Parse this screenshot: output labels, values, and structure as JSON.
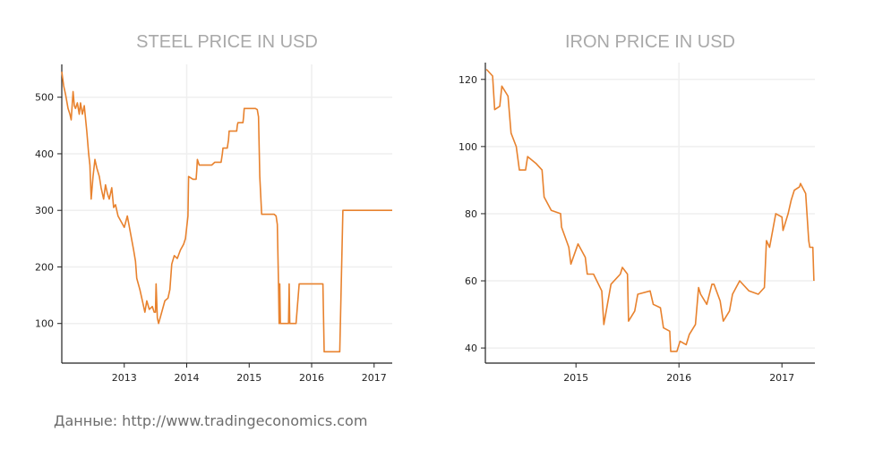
{
  "source_text": "Данные: http://www.tradingeconomics.com",
  "colors": {
    "line": "#e8822e",
    "axis": "#222222",
    "grid": "#efefef",
    "title": "#a9a9a9"
  },
  "chart_data": [
    {
      "type": "line",
      "title": "STEEL PRICE IN USD",
      "xlabel": "",
      "ylabel": "",
      "xlim": [
        2012.0,
        2017.29
      ],
      "ylim": [
        30,
        558
      ],
      "xticks": [
        2013,
        2014,
        2015,
        2016,
        2017
      ],
      "xtick_labels": [
        "2013",
        "2014",
        "2015",
        "2016",
        "2017"
      ],
      "yticks": [
        100,
        200,
        300,
        400,
        500
      ],
      "ytick_labels": [
        "100",
        "200",
        "300",
        "400",
        "500"
      ],
      "grid": true,
      "series": [
        {
          "name": "Steel",
          "x": [
            2012.0,
            2012.03,
            2012.06,
            2012.1,
            2012.13,
            2012.15,
            2012.18,
            2012.2,
            2012.22,
            2012.25,
            2012.28,
            2012.3,
            2012.33,
            2012.36,
            2012.4,
            2012.43,
            2012.45,
            2012.47,
            2012.5,
            2012.53,
            2012.56,
            2012.6,
            2012.63,
            2012.67,
            2012.7,
            2012.73,
            2012.76,
            2012.8,
            2012.83,
            2012.86,
            2012.9,
            2012.95,
            2013.0,
            2013.05,
            2013.1,
            2013.15,
            2013.18,
            2013.2,
            2013.25,
            2013.3,
            2013.33,
            2013.36,
            2013.4,
            2013.45,
            2013.48,
            2013.5,
            2013.51,
            2013.53,
            2013.55,
            2013.6,
            2013.65,
            2013.7,
            2013.73,
            2013.76,
            2013.8,
            2013.85,
            2013.9,
            2013.95,
            2013.98,
            2014.02,
            2014.03,
            2014.1,
            2014.15,
            2014.16,
            2014.17,
            2014.2,
            2014.4,
            2014.45,
            2014.55,
            2014.57,
            2014.58,
            2014.65,
            2014.67,
            2014.68,
            2014.8,
            2014.81,
            2014.82,
            2014.9,
            2014.91,
            2014.92,
            2015.1,
            2015.13,
            2015.15,
            2015.17,
            2015.2,
            2015.4,
            2015.43,
            2015.45,
            2015.47,
            2015.48,
            2015.49,
            2015.5,
            2015.62,
            2015.63,
            2015.64,
            2015.65,
            2015.72,
            2015.75,
            2015.8,
            2016.18,
            2016.2,
            2016.45,
            2016.5,
            2017.29
          ],
          "y": [
            545,
            520,
            505,
            480,
            470,
            460,
            510,
            485,
            480,
            490,
            470,
            490,
            470,
            485,
            440,
            400,
            380,
            320,
            360,
            390,
            375,
            360,
            340,
            320,
            345,
            330,
            320,
            340,
            305,
            310,
            290,
            280,
            270,
            290,
            260,
            230,
            210,
            180,
            160,
            135,
            120,
            140,
            125,
            130,
            120,
            120,
            170,
            110,
            100,
            120,
            140,
            145,
            160,
            205,
            220,
            215,
            230,
            240,
            250,
            290,
            360,
            355,
            355,
            370,
            390,
            380,
            380,
            385,
            385,
            400,
            410,
            410,
            425,
            440,
            440,
            450,
            455,
            455,
            465,
            480,
            480,
            478,
            465,
            360,
            293,
            293,
            290,
            275,
            170,
            100,
            170,
            100,
            100,
            100,
            170,
            100,
            100,
            100,
            170,
            170,
            50,
            50,
            300,
            300
          ]
        }
      ]
    },
    {
      "type": "line",
      "title": "IRON PRICE IN USD",
      "xlabel": "",
      "ylabel": "",
      "xlim": [
        2014.12,
        2017.32
      ],
      "ylim": [
        35.5,
        125
      ],
      "xticks": [
        2015,
        2016,
        2017
      ],
      "xtick_labels": [
        "2015",
        "2016",
        "2017"
      ],
      "yticks": [
        40,
        60,
        80,
        100,
        120
      ],
      "ytick_labels": [
        "40",
        "60",
        "80",
        "100",
        "120"
      ],
      "grid": true,
      "series": [
        {
          "name": "Iron",
          "x": [
            2014.13,
            2014.19,
            2014.21,
            2014.26,
            2014.28,
            2014.34,
            2014.37,
            2014.42,
            2014.45,
            2014.51,
            2014.53,
            2014.61,
            2014.67,
            2014.69,
            2014.76,
            2014.85,
            2014.86,
            2014.93,
            2014.95,
            2015.02,
            2015.09,
            2015.11,
            2015.17,
            2015.25,
            2015.27,
            2015.34,
            2015.43,
            2015.45,
            2015.5,
            2015.51,
            2015.57,
            2015.6,
            2015.72,
            2015.75,
            2015.82,
            2015.85,
            2015.91,
            2015.92,
            2015.98,
            2016.01,
            2016.07,
            2016.1,
            2016.16,
            2016.19,
            2016.21,
            2016.27,
            2016.32,
            2016.34,
            2016.4,
            2016.43,
            2016.49,
            2016.52,
            2016.59,
            2016.68,
            2016.77,
            2016.83,
            2016.85,
            2016.88,
            2016.94,
            2017.0,
            2017.01,
            2017.06,
            2017.09,
            2017.12,
            2017.17,
            2017.18,
            2017.23,
            2017.26,
            2017.27,
            2017.3,
            2017.31
          ],
          "y": [
            123,
            121,
            111,
            112,
            118,
            115,
            104,
            100,
            93,
            93,
            97,
            95,
            93,
            85,
            81,
            80,
            76,
            70,
            65,
            71,
            67,
            62,
            62,
            57,
            47,
            59,
            62,
            64,
            62,
            48,
            51,
            56,
            57,
            53,
            52,
            46,
            45,
            39,
            39,
            42,
            41,
            44,
            47,
            58,
            56,
            53,
            59,
            59,
            54,
            48,
            51,
            56,
            60,
            57,
            56,
            58,
            72,
            70,
            80,
            79,
            75,
            80,
            84,
            87,
            88,
            89,
            86,
            72,
            70,
            70,
            60
          ]
        }
      ]
    }
  ]
}
